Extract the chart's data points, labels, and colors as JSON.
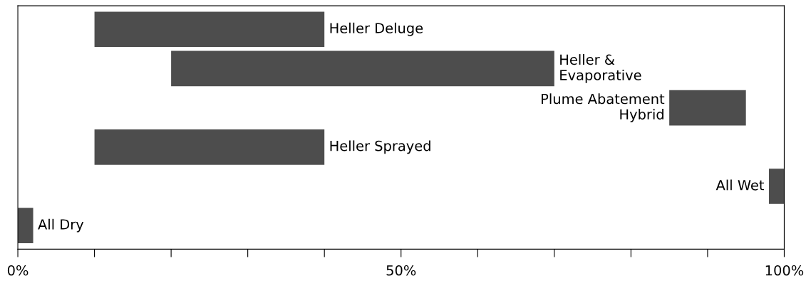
{
  "chart_data": {
    "type": "bar",
    "orientation": "horizontal",
    "categories": [
      "Heller Deluge",
      "Heller &\nEvaporative",
      "Plume Abatement\nHybrid",
      "Heller Sprayed",
      "All Wet",
      "All Dry"
    ],
    "base": [
      10,
      20,
      85,
      10,
      98,
      0
    ],
    "values": [
      30,
      50,
      10,
      30,
      2,
      2
    ],
    "color": "#4d4d4d",
    "xlim": [
      0,
      100
    ],
    "xticks": [
      {
        "value": 0,
        "label": "0%"
      },
      {
        "value": 10,
        "label": null
      },
      {
        "value": 20,
        "label": null
      },
      {
        "value": 30,
        "label": null
      },
      {
        "value": 40,
        "label": null
      },
      {
        "value": 50,
        "label": "50%"
      },
      {
        "value": 60,
        "label": null
      },
      {
        "value": 70,
        "label": null
      },
      {
        "value": 80,
        "label": null
      },
      {
        "value": 90,
        "label": null
      },
      {
        "value": 100,
        "label": "100%"
      }
    ],
    "tick_labels": "x",
    "grid": false,
    "legend": false
  }
}
